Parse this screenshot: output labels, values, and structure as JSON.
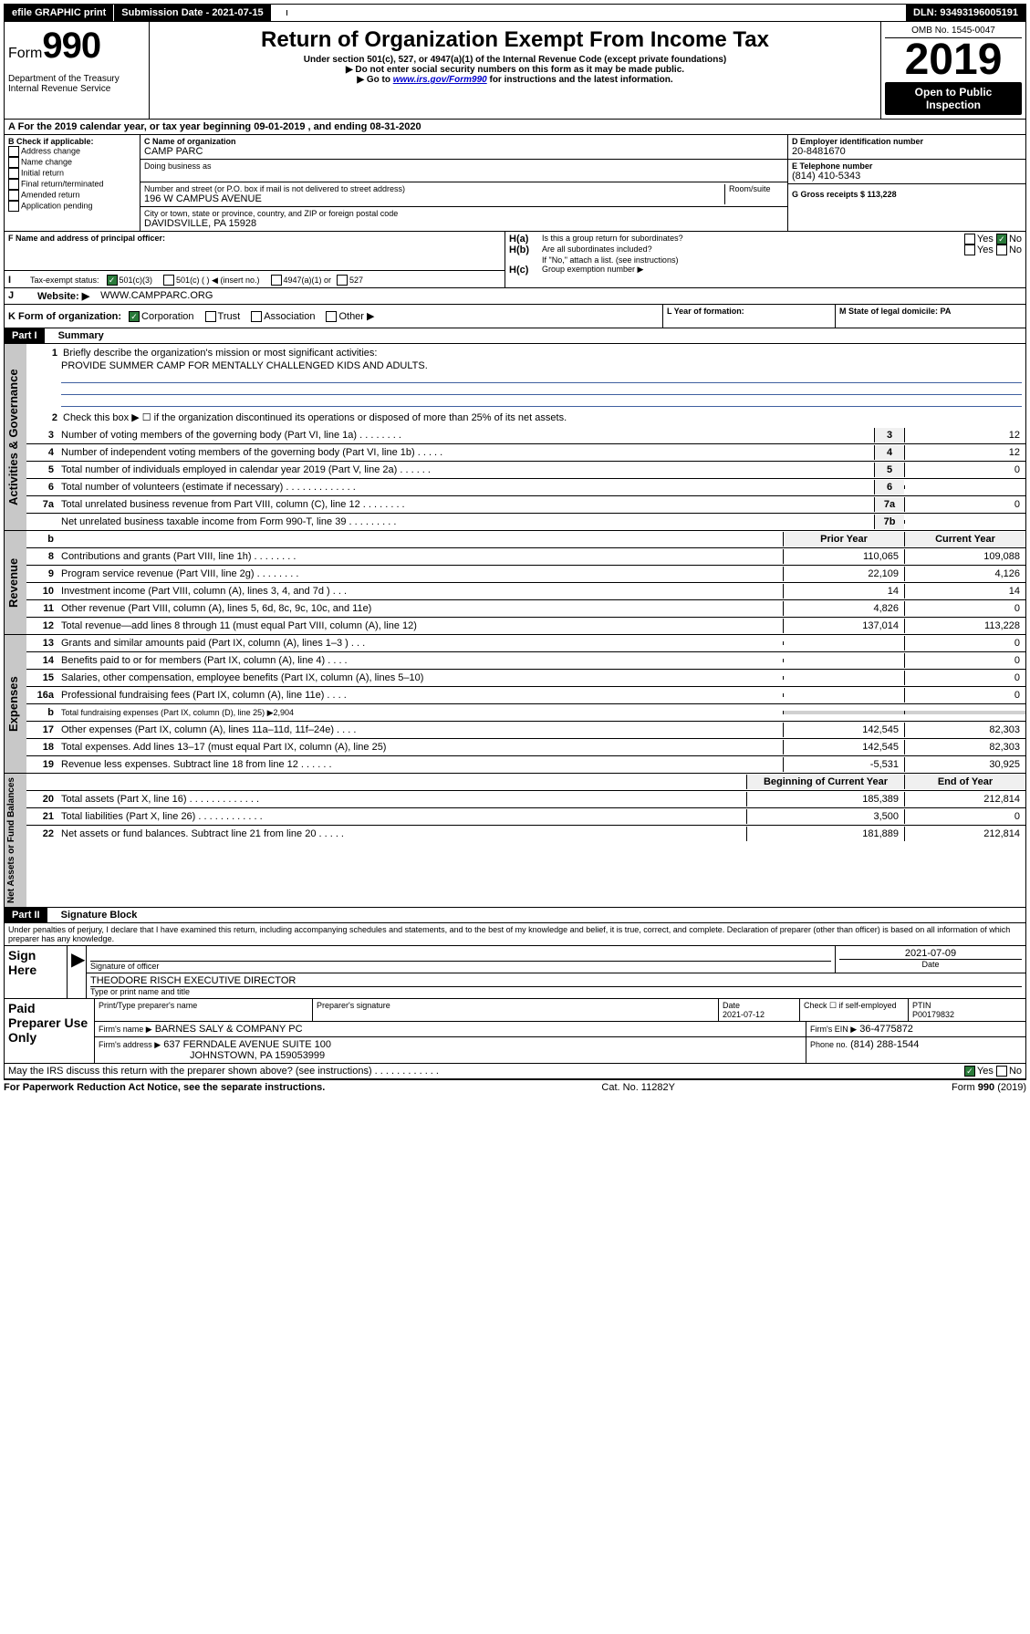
{
  "topbar": {
    "efile": "efile GRAPHIC print",
    "submission_label": "Submission Date - 2021-07-15",
    "dln": "DLN: 93493196005191"
  },
  "header": {
    "form_label": "Form",
    "form_num": "990",
    "title": "Return of Organization Exempt From Income Tax",
    "subtitle1": "Under section 501(c), 527, or 4947(a)(1) of the Internal Revenue Code (except private foundations)",
    "subtitle2": "▶ Do not enter social security numbers on this form as it may be made public.",
    "subtitle3_pre": "▶ Go to ",
    "subtitle3_link": "www.irs.gov/Form990",
    "subtitle3_post": " for instructions and the latest information.",
    "dept": "Department of the Treasury\nInternal Revenue Service",
    "omb": "OMB No. 1545-0047",
    "year": "2019",
    "open_public": "Open to Public Inspection"
  },
  "lineA": "For the 2019 calendar year, or tax year beginning 09-01-2019    , and ending 08-31-2020",
  "boxB": {
    "label": "B Check if applicable:",
    "opts": [
      "Address change",
      "Name change",
      "Initial return",
      "Final return/terminated",
      "Amended return",
      "Application pending"
    ]
  },
  "boxC": {
    "name_label": "C Name of organization",
    "name": "CAMP PARC",
    "dba_label": "Doing business as",
    "street_label": "Number and street (or P.O. box if mail is not delivered to street address)",
    "room_label": "Room/suite",
    "street": "196 W CAMPUS AVENUE",
    "city_label": "City or town, state or province, country, and ZIP or foreign postal code",
    "city": "DAVIDSVILLE, PA  15928"
  },
  "boxD": {
    "label": "D Employer identification number",
    "val": "20-8481670"
  },
  "boxE": {
    "label": "E Telephone number",
    "val": "(814) 410-5343"
  },
  "boxG": {
    "label": "G Gross receipts $ 113,228"
  },
  "boxF": {
    "label": "F Name and address of principal officer:"
  },
  "boxH": {
    "a": "Is this a group return for subordinates?",
    "b": "Are all subordinates included?",
    "b_note": "If \"No,\" attach a list. (see instructions)",
    "c": "Group exemption number ▶"
  },
  "boxI": {
    "label": "Tax-exempt status:",
    "opt1": "501(c)(3)",
    "opt2": "501(c) (  ) ◀ (insert no.)",
    "opt3": "4947(a)(1) or",
    "opt4": "527"
  },
  "boxJ": {
    "label": "Website: ▶",
    "val": "WWW.CAMPPARC.ORG"
  },
  "boxK": {
    "label": "K Form of organization:",
    "opts": [
      "Corporation",
      "Trust",
      "Association",
      "Other ▶"
    ]
  },
  "boxL": {
    "label": "L Year of formation:"
  },
  "boxM": {
    "label": "M State of legal domicile: PA"
  },
  "part1": {
    "header": "Part I",
    "title": "Summary",
    "side_ag": "Activities & Governance",
    "side_rev": "Revenue",
    "side_exp": "Expenses",
    "side_na": "Net Assets or Fund Balances",
    "l1": "Briefly describe the organization's mission or most significant activities:",
    "l1_val": "PROVIDE SUMMER CAMP FOR MENTALLY CHALLENGED KIDS AND ADULTS.",
    "l2": "Check this box ▶ ☐  if the organization discontinued its operations or disposed of more than 25% of its net assets.",
    "lines_ag": [
      {
        "n": "3",
        "t": "Number of voting members of the governing body (Part VI, line 1a)  .  .  .  .  .  .  .  .",
        "box": "3",
        "v": "12"
      },
      {
        "n": "4",
        "t": "Number of independent voting members of the governing body (Part VI, line 1b)  .  .  .  .  .",
        "box": "4",
        "v": "12"
      },
      {
        "n": "5",
        "t": "Total number of individuals employed in calendar year 2019 (Part V, line 2a)  .  .  .  .  .  .",
        "box": "5",
        "v": "0"
      },
      {
        "n": "6",
        "t": "Total number of volunteers (estimate if necessary)  .  .  .  .  .  .  .  .  .  .  .  .  .",
        "box": "6",
        "v": ""
      },
      {
        "n": "7a",
        "t": "Total unrelated business revenue from Part VIII, column (C), line 12  .  .  .  .  .  .  .  .",
        "box": "7a",
        "v": "0"
      },
      {
        "n": "",
        "t": "Net unrelated business taxable income from Form 990-T, line 39  .  .  .  .  .  .  .  .  .",
        "box": "7b",
        "v": ""
      }
    ],
    "col_prior": "Prior Year",
    "col_current": "Current Year",
    "col_begin": "Beginning of Current Year",
    "col_end": "End of Year",
    "lines_rev": [
      {
        "n": "8",
        "t": "Contributions and grants (Part VIII, line 1h)  .  .  .  .  .  .  .  .",
        "p": "110,065",
        "c": "109,088"
      },
      {
        "n": "9",
        "t": "Program service revenue (Part VIII, line 2g)  .  .  .  .  .  .  .  .",
        "p": "22,109",
        "c": "4,126"
      },
      {
        "n": "10",
        "t": "Investment income (Part VIII, column (A), lines 3, 4, and 7d )  .  .  .",
        "p": "14",
        "c": "14"
      },
      {
        "n": "11",
        "t": "Other revenue (Part VIII, column (A), lines 5, 6d, 8c, 9c, 10c, and 11e)",
        "p": "4,826",
        "c": "0"
      },
      {
        "n": "12",
        "t": "Total revenue—add lines 8 through 11 (must equal Part VIII, column (A), line 12)",
        "p": "137,014",
        "c": "113,228"
      }
    ],
    "lines_exp": [
      {
        "n": "13",
        "t": "Grants and similar amounts paid (Part IX, column (A), lines 1–3 )  .  .  .",
        "p": "",
        "c": "0"
      },
      {
        "n": "14",
        "t": "Benefits paid to or for members (Part IX, column (A), line 4)  .  .  .  .",
        "p": "",
        "c": "0"
      },
      {
        "n": "15",
        "t": "Salaries, other compensation, employee benefits (Part IX, column (A), lines 5–10)",
        "p": "",
        "c": "0"
      },
      {
        "n": "16a",
        "t": "Professional fundraising fees (Part IX, column (A), line 11e)  .  .  .  .",
        "p": "",
        "c": "0"
      },
      {
        "n": "b",
        "t": "Total fundraising expenses (Part IX, column (D), line 25) ▶2,904",
        "p": null,
        "c": null
      },
      {
        "n": "17",
        "t": "Other expenses (Part IX, column (A), lines 11a–11d, 11f–24e)  .  .  .  .",
        "p": "142,545",
        "c": "82,303"
      },
      {
        "n": "18",
        "t": "Total expenses. Add lines 13–17 (must equal Part IX, column (A), line 25)",
        "p": "142,545",
        "c": "82,303"
      },
      {
        "n": "19",
        "t": "Revenue less expenses. Subtract line 18 from line 12  .  .  .  .  .  .",
        "p": "-5,531",
        "c": "30,925"
      }
    ],
    "lines_na": [
      {
        "n": "20",
        "t": "Total assets (Part X, line 16)  .  .  .  .  .  .  .  .  .  .  .  .  .",
        "p": "185,389",
        "c": "212,814"
      },
      {
        "n": "21",
        "t": "Total liabilities (Part X, line 26)  .  .  .  .  .  .  .  .  .  .  .  .",
        "p": "3,500",
        "c": "0"
      },
      {
        "n": "22",
        "t": "Net assets or fund balances. Subtract line 21 from line 20  .  .  .  .  .",
        "p": "181,889",
        "c": "212,814"
      }
    ]
  },
  "part2": {
    "header": "Part II",
    "title": "Signature Block",
    "perjury": "Under penalties of perjury, I declare that I have examined this return, including accompanying schedules and statements, and to the best of my knowledge and belief, it is true, correct, and complete. Declaration of preparer (other than officer) is based on all information of which preparer has any knowledge.",
    "sign_here": "Sign Here",
    "sig_officer": "Signature of officer",
    "sig_date": "2021-07-09",
    "date_label": "Date",
    "name": "THEODORE RISCH  EXECUTIVE DIRECTOR",
    "name_label": "Type or print name and title",
    "paid": "Paid Preparer Use Only",
    "prep_name_label": "Print/Type preparer's name",
    "prep_sig_label": "Preparer's signature",
    "prep_date_label": "Date",
    "prep_date": "2021-07-12",
    "prep_check": "Check ☐ if self-employed",
    "ptin_label": "PTIN",
    "ptin": "P00179832",
    "firm_name_label": "Firm's name    ▶",
    "firm_name": "BARNES SALY & COMPANY PC",
    "firm_ein_label": "Firm's EIN ▶",
    "firm_ein": "36-4775872",
    "firm_addr_label": "Firm's address ▶",
    "firm_addr1": "637 FERNDALE AVENUE SUITE 100",
    "firm_addr2": "JOHNSTOWN, PA  159053999",
    "firm_phone_label": "Phone no.",
    "firm_phone": "(814) 288-1544",
    "discuss": "May the IRS discuss this return with the preparer shown above? (see instructions)  .  .  .  .  .  .  .  .  .  .  .  .",
    "yes": "Yes",
    "no": "No"
  },
  "footer": {
    "pra": "For Paperwork Reduction Act Notice, see the separate instructions.",
    "cat": "Cat. No. 11282Y",
    "form": "Form 990 (2019)"
  }
}
